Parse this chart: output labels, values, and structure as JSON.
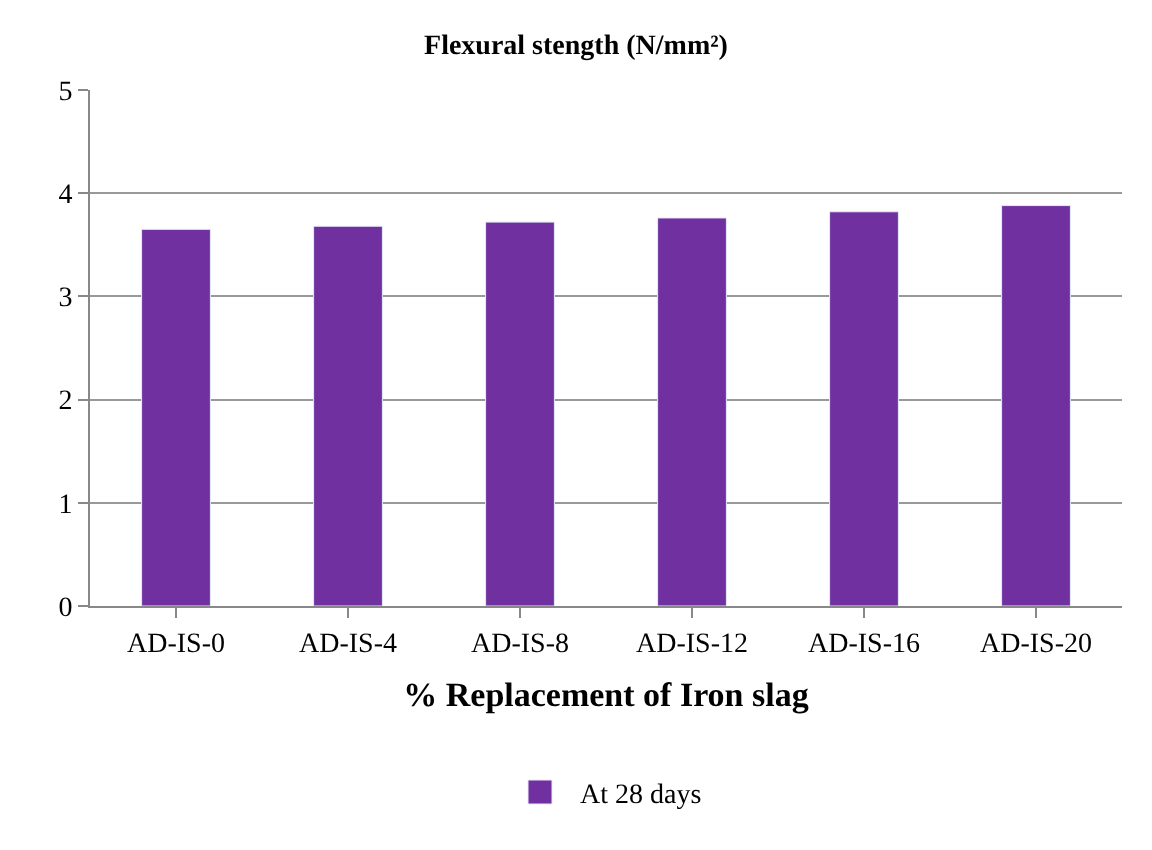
{
  "chart_data": {
    "type": "bar",
    "title": "Flexural stength (N/mm²)",
    "xlabel": "% Replacement of Iron slag",
    "categories": [
      "AD-IS-0",
      "AD-IS-4",
      "AD-IS-8",
      "AD-IS-12",
      "AD-IS-16",
      "AD-IS-20"
    ],
    "series": [
      {
        "name": "At 28 days",
        "color": "#7030a0",
        "values": [
          3.65,
          3.68,
          3.72,
          3.76,
          3.82,
          3.88
        ]
      }
    ],
    "ylim": [
      0,
      5
    ],
    "yticks": [
      0,
      1,
      2,
      3,
      4,
      5
    ],
    "grid": "y",
    "legend": "bottom"
  }
}
